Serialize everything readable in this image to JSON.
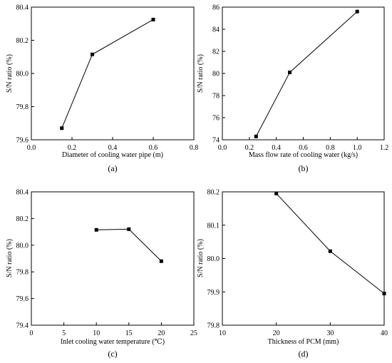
{
  "chart_data": [
    {
      "type": "line",
      "panel_label": "(a)",
      "xlabel": "Diameter of cooling water pipe (m)",
      "ylabel": "S/N ratio (%)",
      "xlim": [
        0.0,
        0.8
      ],
      "ylim": [
        79.6,
        80.4
      ],
      "xticks": [
        0.0,
        0.2,
        0.4,
        0.6,
        0.8
      ],
      "yticks": [
        79.6,
        79.8,
        80.0,
        80.2,
        80.4
      ],
      "xtick_labels": [
        "0.0",
        "0.2",
        "0.4",
        "0.6",
        "0.8"
      ],
      "ytick_labels": [
        "79.6",
        "79.8",
        "80.0",
        "80.2",
        "80.4"
      ],
      "x": [
        0.15,
        0.3,
        0.6
      ],
      "y": [
        79.67,
        80.115,
        80.325
      ],
      "marker": "square",
      "grid": false
    },
    {
      "type": "line",
      "panel_label": "(b)",
      "xlabel": "Mass flow rate of cooling water (kg/s)",
      "ylabel": "S/N ratio (%)",
      "xlim": [
        0.0,
        1.2
      ],
      "ylim": [
        74,
        86
      ],
      "xticks": [
        0.0,
        0.2,
        0.4,
        0.6,
        0.8,
        1.0,
        1.2
      ],
      "yticks": [
        74,
        76,
        78,
        80,
        82,
        84,
        86
      ],
      "xtick_labels": [
        "0.0",
        "0.2",
        "0.4",
        "0.6",
        "0.8",
        "1.0",
        "1.2"
      ],
      "ytick_labels": [
        "74",
        "76",
        "78",
        "80",
        "82",
        "84",
        "86"
      ],
      "x": [
        0.25,
        0.5,
        1.0
      ],
      "y": [
        74.3,
        80.1,
        85.6
      ],
      "marker": "square",
      "grid": false
    },
    {
      "type": "line",
      "panel_label": "(c)",
      "xlabel": "Inlet cooling water temperature (℃)",
      "ylabel": "S/N ratio (%)",
      "xlim": [
        0,
        25
      ],
      "ylim": [
        79.4,
        80.4
      ],
      "xticks": [
        0,
        5,
        10,
        15,
        20,
        25
      ],
      "yticks": [
        79.4,
        79.6,
        79.8,
        80.0,
        80.2,
        80.4
      ],
      "xtick_labels": [
        "0",
        "5",
        "10",
        "15",
        "20",
        "25"
      ],
      "ytick_labels": [
        "79.4",
        "79.6",
        "79.8",
        "80.0",
        "80.2",
        "80.4"
      ],
      "x": [
        10,
        15,
        20
      ],
      "y": [
        80.115,
        80.12,
        79.88
      ],
      "marker": "square",
      "grid": false
    },
    {
      "type": "line",
      "panel_label": "(d)",
      "xlabel": "Thickness of PCM (mm)",
      "ylabel": "S/N ratio (%)",
      "xlim": [
        10,
        40
      ],
      "ylim": [
        79.8,
        80.2
      ],
      "xticks": [
        10,
        20,
        30,
        40
      ],
      "yticks": [
        79.8,
        79.9,
        80.0,
        80.1,
        80.2
      ],
      "xtick_labels": [
        "10",
        "20",
        "30",
        "40"
      ],
      "ytick_labels": [
        "79.8",
        "79.9",
        "80.0",
        "80.1",
        "80.2"
      ],
      "x": [
        20,
        30,
        40
      ],
      "y": [
        80.195,
        80.022,
        79.895
      ],
      "marker": "square",
      "grid": false
    }
  ]
}
